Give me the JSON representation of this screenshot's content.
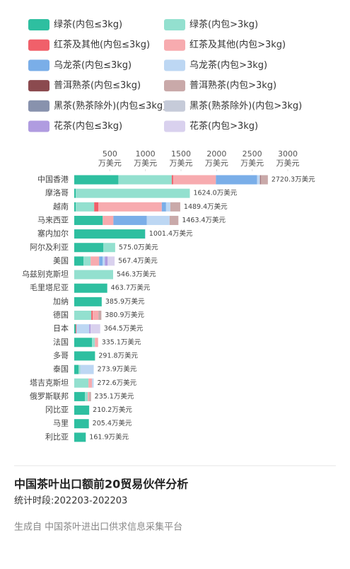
{
  "chart_data": {
    "type": "stacked-bar-horizontal",
    "title": "中国茶叶出口额前20贸易伙伴分析",
    "subtitle": "统计时段:202203-202203",
    "source": "生成自 中国茶叶进出口供求信息采集平台",
    "tick_unit": "万美元",
    "categories": [
      "中国香港",
      "摩洛哥",
      "越南",
      "马来西亚",
      "塞内加尔",
      "阿尔及利亚",
      "美国",
      "乌兹别克斯坦",
      "毛里塔尼亚",
      "加纳",
      "德国",
      "日本",
      "法国",
      "多哥",
      "泰国",
      "塔吉克斯坦",
      "俄罗斯联邦",
      "冈比亚",
      "马里",
      "利比亚"
    ],
    "totals": [
      2720.3,
      1624.0,
      1489.4,
      1463.4,
      1001.4,
      575.0,
      567.4,
      546.3,
      463.7,
      385.9,
      380.9,
      364.5,
      335.1,
      291.8,
      273.9,
      272.6,
      235.1,
      210.2,
      205.4,
      161.9
    ],
    "value_labels": [
      "2720.3万美元",
      "1624.0万美元",
      "1489.4万美元",
      "1463.4万美元",
      "1001.4万美元",
      "575.0万美元",
      "567.4万美元",
      "546.3万美元",
      "463.7万美元",
      "385.9万美元",
      "380.9万美元",
      "364.5万美元",
      "335.1万美元",
      "291.8万美元",
      "273.9万美元",
      "272.6万美元",
      "235.1万美元",
      "210.2万美元",
      "205.4万美元",
      "161.9万美元"
    ],
    "xlim": [
      0,
      3000
    ],
    "xticks": [
      500,
      1000,
      1500,
      2000,
      2500,
      3000
    ],
    "series": [
      {
        "name": "绿茶(内包≤3kg)",
        "color": "#2ebfa0",
        "values": [
          620,
          20,
          20,
          400,
          995.4,
          410,
          130,
          0,
          463.7,
          385.9,
          0,
          20,
          250,
          291.8,
          60,
          0,
          150,
          210.2,
          205.4,
          161.9
        ]
      },
      {
        "name": "绿茶(内包>3kg)",
        "color": "#93e0cf",
        "values": [
          750,
          1604,
          260,
          0,
          0,
          165,
          100,
          546.3,
          0,
          0,
          240,
          0,
          40,
          0,
          23.9,
          200,
          40,
          0,
          0,
          0
        ]
      },
      {
        "name": "红茶及其他(内包≤3kg)",
        "color": "#f0606a",
        "values": [
          20,
          0,
          60,
          0,
          0,
          0,
          0,
          0,
          0,
          0,
          20,
          10,
          0,
          0,
          0,
          0,
          0,
          0,
          0,
          0
        ]
      },
      {
        "name": "红茶及其他(内包>3kg)",
        "color": "#f7abaf",
        "values": [
          600,
          0,
          890,
          150,
          0,
          0,
          120,
          0,
          0,
          0,
          80,
          0,
          45.1,
          0,
          0,
          50,
          20,
          0,
          0,
          0
        ]
      },
      {
        "name": "乌龙茶(内包≤3kg)",
        "color": "#7aaee8",
        "values": [
          580,
          0,
          60,
          470,
          0,
          0,
          50,
          0,
          0,
          0,
          0,
          0,
          0,
          0,
          0,
          0,
          0,
          0,
          0,
          0
        ]
      },
      {
        "name": "乌龙茶(内包>3kg)",
        "color": "#bdd7f3",
        "values": [
          40,
          0,
          60,
          320,
          6,
          0,
          30,
          0,
          0,
          0,
          0,
          180,
          0,
          0,
          190,
          22.6,
          0,
          0,
          0,
          0
        ]
      },
      {
        "name": "普洱熟茶(内包≤3kg)",
        "color": "#8b4a4f",
        "values": [
          10,
          0,
          0,
          0,
          0,
          0,
          0,
          0,
          0,
          0,
          0,
          0,
          0,
          0,
          0,
          0,
          0,
          0,
          0,
          0
        ]
      },
      {
        "name": "普洱熟茶(内包>3kg)",
        "color": "#c9a9a9",
        "values": [
          100.3,
          0,
          139.4,
          123.4,
          0,
          0,
          0,
          0,
          0,
          0,
          40.9,
          0,
          0,
          0,
          0,
          0,
          25.1,
          0,
          0,
          0
        ]
      },
      {
        "name": "黑茶(熟茶除外)(内包≤3kg)",
        "color": "#8892ad",
        "values": [
          0,
          0,
          0,
          0,
          0,
          0,
          0,
          0,
          0,
          0,
          0,
          0,
          0,
          0,
          0,
          0,
          0,
          0,
          0,
          0
        ]
      },
      {
        "name": "黑茶(熟茶除外)(内包>3kg)",
        "color": "#c6cbd9",
        "values": [
          0,
          0,
          0,
          0,
          0,
          0,
          0,
          0,
          0,
          0,
          0,
          0,
          0,
          0,
          0,
          0,
          0,
          0,
          0,
          0
        ]
      },
      {
        "name": "花茶(内包≤3kg)",
        "color": "#b09ce0",
        "values": [
          0,
          0,
          0,
          0,
          0,
          0,
          40,
          0,
          0,
          0,
          0,
          20,
          0,
          0,
          0,
          0,
          0,
          0,
          0,
          0
        ]
      },
      {
        "name": "花茶(内包>3kg)",
        "color": "#d9d1ee",
        "values": [
          0,
          0,
          0,
          0,
          0,
          0,
          97.4,
          0,
          0,
          0,
          0,
          134.5,
          0,
          0,
          0,
          0,
          0,
          0,
          0,
          0
        ]
      }
    ]
  }
}
